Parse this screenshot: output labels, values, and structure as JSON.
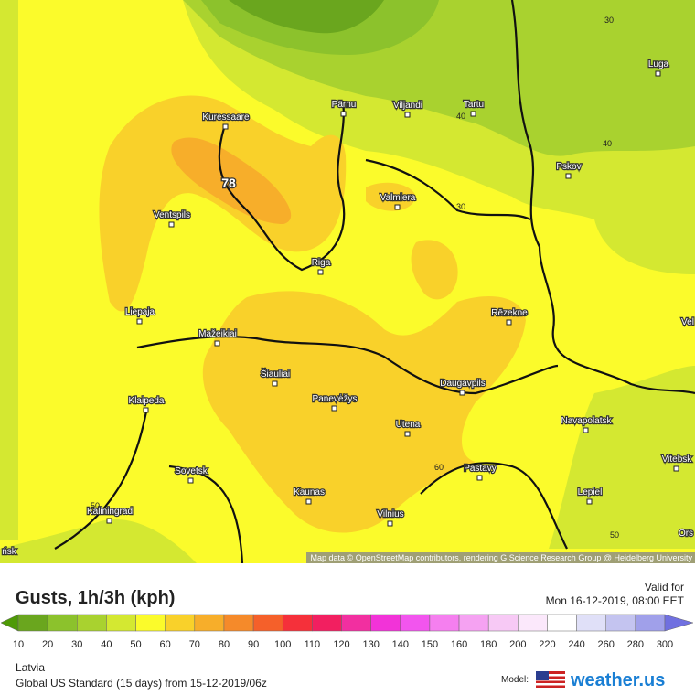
{
  "header": {
    "title": "Gusts, 1h/3h (kph)",
    "valid_label": "Valid for",
    "valid_time": "Mon 16-12-2019, 08:00 EET"
  },
  "map": {
    "cities": [
      "Kuressaare",
      "Pärnu",
      "Viljandi",
      "Tartu",
      "Luga",
      "Pskov",
      "Ventspils",
      "Valmiera",
      "Riga",
      "Liepaja",
      "Rēzekne",
      "Mažeikiai",
      "Šiauliai",
      "Panevėžys",
      "Daugavpils",
      "Klaipeda",
      "Navapolatsk",
      "Utena",
      "Vitebsk",
      "Sovetsk",
      "Pastavy",
      "Lepiel",
      "Kaunas",
      "Kaliningrad",
      "Vilnius",
      "Vel",
      "Ors",
      "ńsk"
    ],
    "contour_labels": [
      "30",
      "40",
      "40",
      "30",
      "50",
      "60",
      "50"
    ],
    "max_label": "78",
    "attribution": "Map data © OpenStreetMap contributors, rendering GIScience Research Group @ Heidelberg University"
  },
  "legend": {
    "ticks": [
      10,
      20,
      30,
      40,
      50,
      60,
      70,
      80,
      90,
      100,
      110,
      120,
      130,
      140,
      150,
      160,
      180,
      200,
      220,
      240,
      260,
      280,
      300
    ],
    "colors": [
      "#4e9a06",
      "#6aa61e",
      "#8cc22c",
      "#a9d22f",
      "#d4e831",
      "#fbfb2b",
      "#f9d12a",
      "#f7ae2a",
      "#f58a2a",
      "#f5602a",
      "#f5303a",
      "#f21f60",
      "#f22fa0",
      "#f233d8",
      "#f255ee",
      "#f57fef",
      "#f5a2f2",
      "#f7c9f5",
      "#fbe8fb",
      "#ffffff",
      "#e0e0f8",
      "#c4c4f0",
      "#a0a0ea",
      "#7070e0"
    ]
  },
  "footer": {
    "region": "Latvia",
    "model_run": "Global US Standard (15 days) from 15-12-2019/06z",
    "model_label": "Model:",
    "brand": "weather.us"
  }
}
